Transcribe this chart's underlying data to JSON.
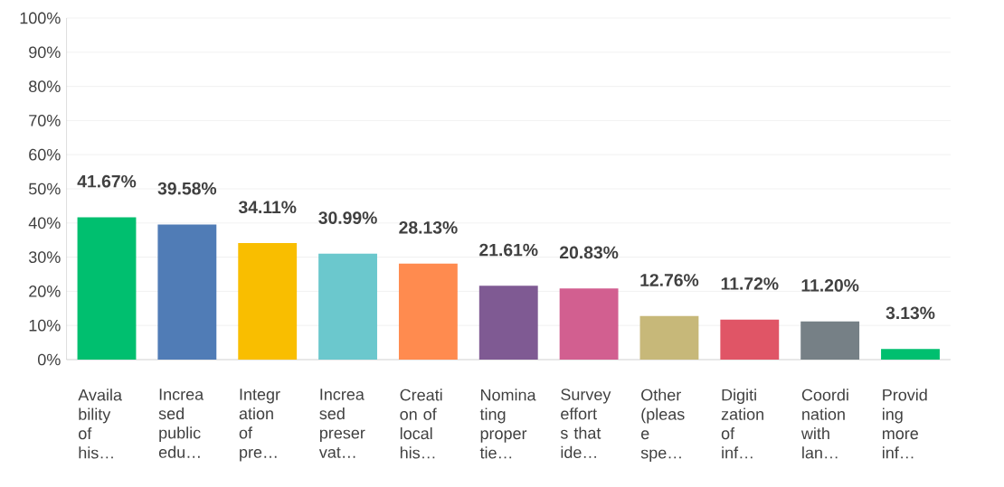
{
  "chart_data": {
    "type": "bar",
    "categories": [
      "Availa bility of his…",
      "Increa sed public edu…",
      "Integr ation of pre…",
      "Increa sed preser vat…",
      "Creati on of local his…",
      "Nomina ting proper tie…",
      "Survey effort s that ide…",
      "Other (pleas e spe…",
      "Digiti zation of inf…",
      "Coordi nation with lan…",
      "Provid ing more inf…"
    ],
    "values": [
      41.67,
      39.58,
      34.11,
      30.99,
      28.13,
      21.61,
      20.83,
      12.76,
      11.72,
      11.2,
      3.13
    ],
    "colors": [
      "#00bf6f",
      "#507cb6",
      "#f9be00",
      "#6bc8cd",
      "#ff8b4f",
      "#7f5a93",
      "#d25f90",
      "#c7b879",
      "#e05566",
      "#768086",
      "#00bf6f"
    ],
    "value_labels": [
      "41.67%",
      "39.58%",
      "34.11%",
      "30.99%",
      "28.13%",
      "21.61%",
      "20.83%",
      "12.76%",
      "11.72%",
      "11.20%",
      "3.13%"
    ],
    "ylim": [
      0,
      100
    ],
    "yticks": [
      {
        "value": 0,
        "label": "0%"
      },
      {
        "value": 10,
        "label": "10%"
      },
      {
        "value": 20,
        "label": "20%"
      },
      {
        "value": 30,
        "label": "30%"
      },
      {
        "value": 40,
        "label": "40%"
      },
      {
        "value": 50,
        "label": "50%"
      },
      {
        "value": 60,
        "label": "60%"
      },
      {
        "value": 70,
        "label": "70%"
      },
      {
        "value": 80,
        "label": "80%"
      },
      {
        "value": 90,
        "label": "90%"
      },
      {
        "value": 100,
        "label": "100%"
      }
    ],
    "grid": "y"
  }
}
